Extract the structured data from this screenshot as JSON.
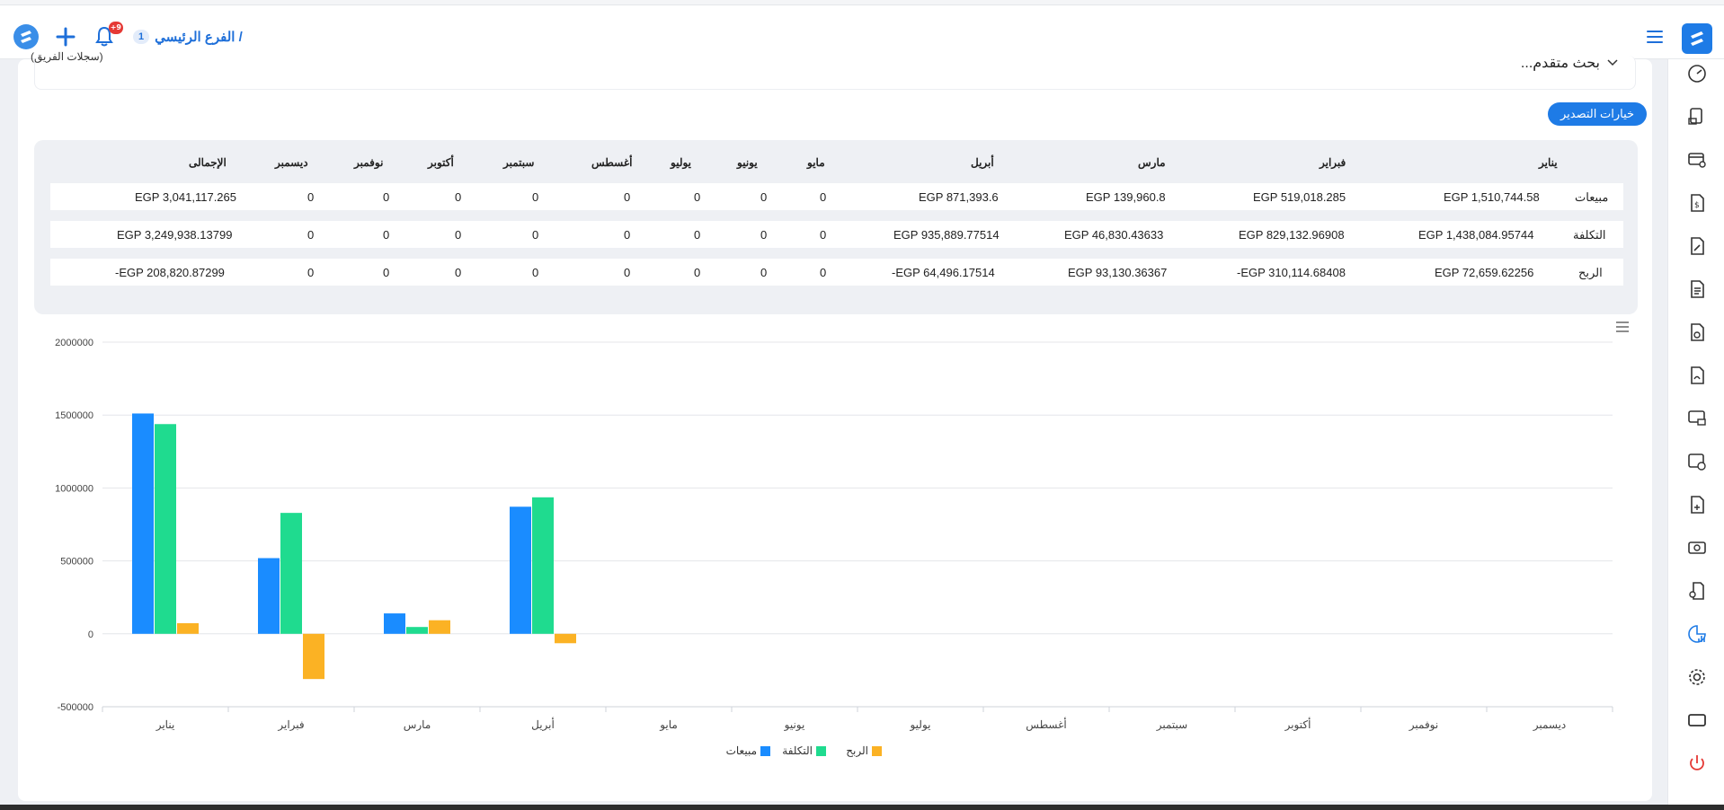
{
  "header": {
    "branch_label": "الفرع الرئيسي /",
    "branch_count": "1",
    "notification_badge": "+9",
    "icons": [
      "app-logo-icon",
      "add-icon",
      "bell-icon",
      "menu-icon"
    ]
  },
  "sidebar": {
    "icons": [
      "speedometer-icon",
      "invoice-truck-icon",
      "credit-card-icon",
      "document-dollar-icon",
      "document-edit-icon",
      "document-list-icon",
      "document-tag-icon",
      "document-sign-icon",
      "screen-payment-icon",
      "image-settings-icon",
      "document-add-icon",
      "cash-icon",
      "user-document-icon",
      "reports-chart-icon",
      "settings-icon",
      "window-icon",
      "power-icon"
    ]
  },
  "filters": {
    "team_records": "(سجلات الفريق)",
    "advanced_search": "بحث متقدم..."
  },
  "export_button": "خيارات التصدير",
  "table": {
    "headers": [
      "يناير",
      "فبراير",
      "مارس",
      "أبريل",
      "مايو",
      "يونيو",
      "يوليو",
      "أغسطس",
      "سبتمبر",
      "أكتوبر",
      "نوفمبر",
      "ديسمبر",
      "الإجمالى"
    ],
    "rows": [
      {
        "label": "مبيعات",
        "cells": [
          "EGP 1,510,744.58",
          "EGP 519,018.285",
          "EGP 139,960.8",
          "EGP 871,393.6",
          "0",
          "0",
          "0",
          "0",
          "0",
          "0",
          "0",
          "0",
          "EGP 3,041,117.265"
        ]
      },
      {
        "label": "التكلفة",
        "cells": [
          "EGP 1,438,084.95744",
          "EGP 829,132.96908",
          "EGP 46,830.43633",
          "EGP 935,889.77514",
          "0",
          "0",
          "0",
          "0",
          "0",
          "0",
          "0",
          "0",
          "EGP 3,249,938.13799"
        ]
      },
      {
        "label": "الربح",
        "cells": [
          "EGP 72,659.62256",
          "-EGP 310,114.68408",
          "EGP 93,130.36367",
          "-EGP 64,496.17514",
          "0",
          "0",
          "0",
          "0",
          "0",
          "0",
          "0",
          "0",
          "-EGP 208,820.87299"
        ]
      }
    ]
  },
  "chart_data": {
    "type": "bar",
    "categories": [
      "يناير",
      "فبراير",
      "مارس",
      "أبريل",
      "مايو",
      "يونيو",
      "يوليو",
      "أغسطس",
      "سبتمبر",
      "أكتوبر",
      "نوفمبر",
      "ديسمبر"
    ],
    "series": [
      {
        "name": "مبيعات",
        "color": "#1a8cff",
        "values": [
          1510744.58,
          519018.285,
          139960.8,
          871393.6,
          0,
          0,
          0,
          0,
          0,
          0,
          0,
          0
        ]
      },
      {
        "name": "التكلفة",
        "color": "#1fdb8f",
        "values": [
          1438084.95744,
          829132.96908,
          46830.43633,
          935889.77514,
          0,
          0,
          0,
          0,
          0,
          0,
          0,
          0
        ]
      },
      {
        "name": "الربح",
        "color": "#fbb224",
        "values": [
          72659.62256,
          -310114.68408,
          93130.36367,
          -64496.17514,
          0,
          0,
          0,
          0,
          0,
          0,
          0,
          0
        ]
      }
    ],
    "yticks": [
      "2000000",
      "1500000",
      "1000000",
      "500000",
      "0",
      "-500000"
    ],
    "ylim": [
      -500000,
      2000000
    ],
    "grid": true,
    "legend": "bottom-center",
    "title": "",
    "xlabel": "",
    "ylabel": ""
  }
}
